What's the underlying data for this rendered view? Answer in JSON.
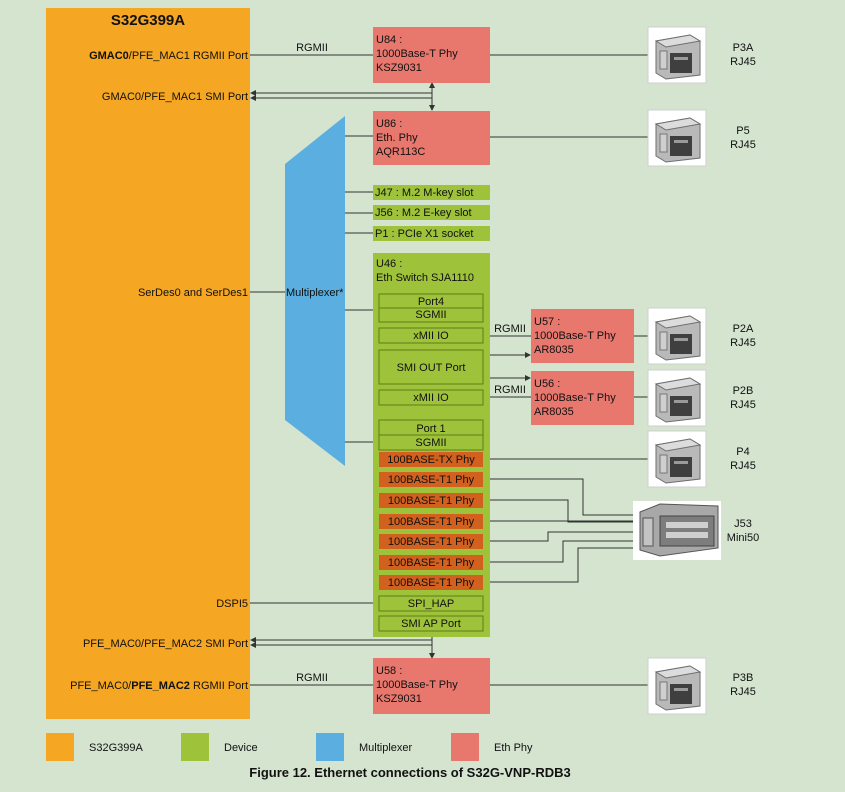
{
  "soc": {
    "title": "S32G399A",
    "ports": {
      "gmac_rgmii_bold": "GMAC0",
      "gmac_rgmii_rest": "/PFE_MAC1 RGMII Port",
      "gmac_smi": "GMAC0/PFE_MAC1 SMI Port",
      "serdes": "SerDes0 and SerDes1",
      "dspi": "DSPI5",
      "pfe_smi": "PFE_MAC0/PFE_MAC2 SMI Port",
      "pfe_rgmii_pre": "PFE_MAC0/",
      "pfe_rgmii_bold": "PFE_MAC2",
      "pfe_rgmii_post": " RGMII Port"
    }
  },
  "links": {
    "rgmii_top": "RGMII",
    "rgmii_bottom": "RGMII",
    "rgmii_u57": "RGMII",
    "rgmii_u56": "RGMII"
  },
  "multiplexer": {
    "label": "Multiplexer*"
  },
  "phys": {
    "u84": [
      "U84 :",
      "1000Base-T Phy",
      "KSZ9031"
    ],
    "u86": [
      "U86 :",
      "Eth. Phy",
      "AQR113C"
    ],
    "u57": [
      "U57 :",
      "1000Base-T Phy",
      "AR8035"
    ],
    "u56": [
      "U56 :",
      "1000Base-T Phy",
      "AR8035"
    ],
    "u58": [
      "U58 :",
      "1000Base-T Phy",
      "KSZ9031"
    ]
  },
  "slots": {
    "j47": "J47 : M.2 M-key slot",
    "j56": "J56 : M.2 E-key slot",
    "p1": "P1 : PCIe X1 socket"
  },
  "switch": {
    "title_line1": "U46 :",
    "title_line2": "Eth Switch SJA1110",
    "port4": [
      "Port4",
      "SGMII"
    ],
    "xmii_1": "xMII IO",
    "smi_out": "SMI OUT Port",
    "xmii_2": "xMII IO",
    "port1": [
      "Port 1",
      "SGMII"
    ],
    "phy_tx": "100BASE-TX Phy",
    "phy_t1": [
      "100BASE-T1 Phy",
      "100BASE-T1 Phy",
      "100BASE-T1 Phy",
      "100BASE-T1 Phy",
      "100BASE-T1 Phy",
      "100BASE-T1 Phy"
    ],
    "spi_hap": "SPI_HAP",
    "smi_ap": "SMI AP Port"
  },
  "connectors": {
    "p3a": [
      "P3A",
      "RJ45"
    ],
    "p5": [
      "P5",
      "RJ45"
    ],
    "p2a": [
      "P2A",
      "RJ45"
    ],
    "p2b": [
      "P2B",
      "RJ45"
    ],
    "p4": [
      "P4",
      "RJ45"
    ],
    "j53": [
      "J53",
      "Mini50"
    ],
    "p3b": [
      "P3B",
      "RJ45"
    ]
  },
  "legend": {
    "items": [
      {
        "label": "S32G399A",
        "color": "#f5a623"
      },
      {
        "label": "Device",
        "color": "#9ec23a"
      },
      {
        "label": "Multiplexer",
        "color": "#5baee0"
      },
      {
        "label": "Eth Phy",
        "color": "#e8786e"
      }
    ]
  },
  "caption": "Figure 12. Ethernet connections of S32G-VNP-RDB3",
  "colors": {
    "soc": "#f5a623",
    "device": "#9ec23a",
    "device_inner": "#a9cc48",
    "mux": "#5baee0",
    "phy": "#e8786e",
    "phy_orange": "#d2611f",
    "background": "#d4e4cf"
  }
}
